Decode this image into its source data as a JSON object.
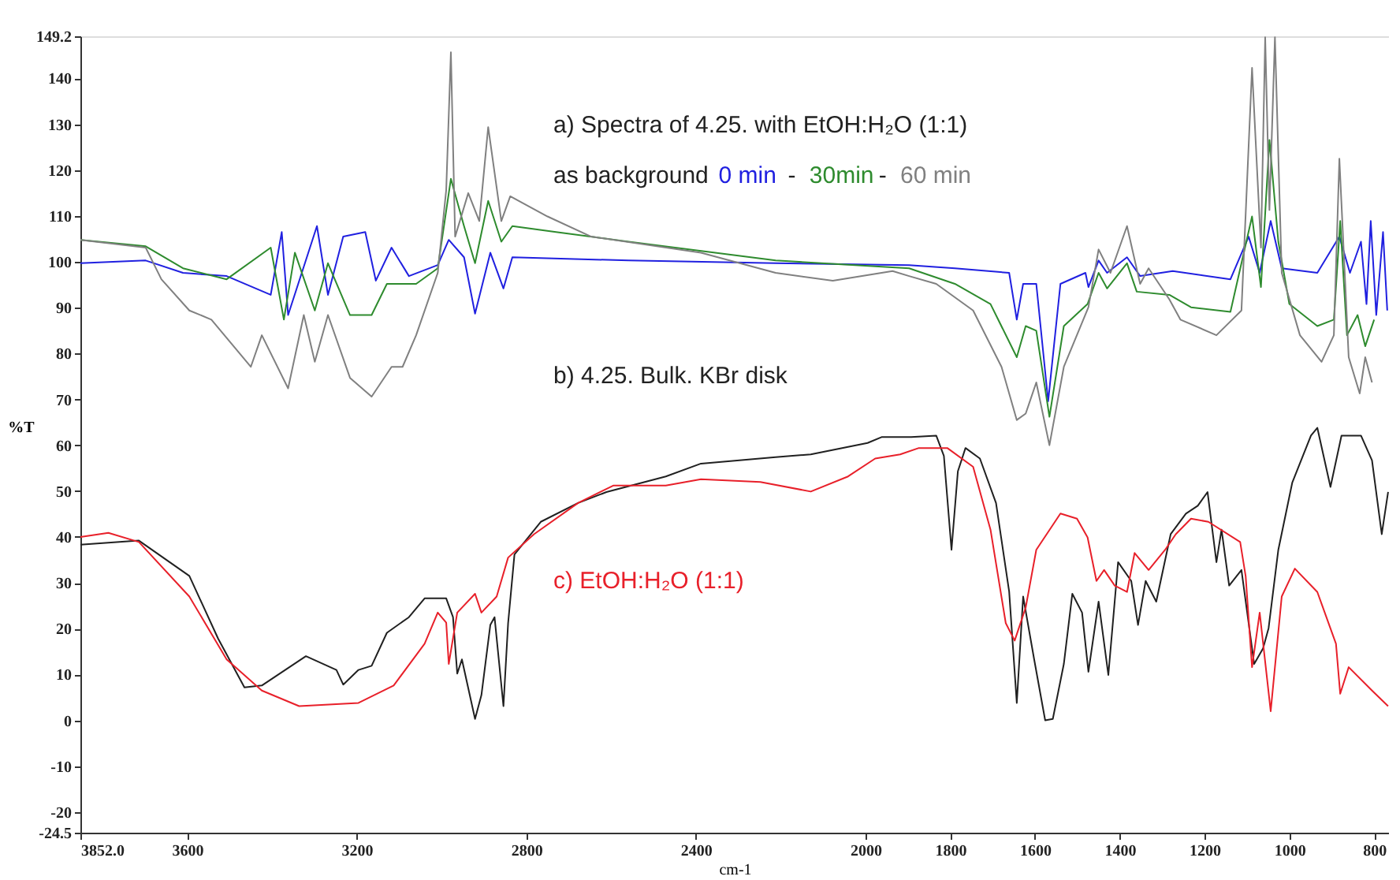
{
  "chart_data": {
    "type": "line",
    "xlabel": "cm-1",
    "ylabel": "%T",
    "annotations": [
      "a) Spectra of 4.25. with EtOH:H₂O (1:1)",
      "as background",
      "-",
      "-"
    ],
    "xlim": [
      3852,
      765
    ],
    "ylim": [
      -24.5,
      149.2
    ],
    "xticks": [
      {
        "value": 3852,
        "label": "3852.0"
      },
      3600,
      3200,
      2800,
      2400,
      2000,
      1800,
      1600,
      1400,
      1200,
      1000,
      800
    ],
    "yticks": [
      -24.5,
      -20,
      -10,
      0,
      10,
      20,
      30,
      40,
      50,
      60,
      70,
      80,
      90,
      100,
      110,
      120,
      130,
      140,
      149.2
    ],
    "grid": false,
    "legend": false,
    "marker": "none",
    "line_style": "solid",
    "series": [
      {
        "name": "0 min",
        "color": "#2020e0",
        "x": [
          3852,
          3698,
          3610,
          3507,
          3403,
          3377,
          3362,
          3294,
          3268,
          3232,
          3180,
          3155,
          3118,
          3077,
          3009,
          2983,
          2947,
          2921,
          2885,
          2854,
          2833,
          2559,
          2212,
          1897,
          1789,
          1661,
          1643,
          1628,
          1597,
          1569,
          1540,
          1481,
          1474,
          1450,
          1430,
          1383,
          1352,
          1275,
          1139,
          1096,
          1070,
          1044,
          1018,
          934,
          882,
          857,
          831,
          818,
          808,
          795,
          779,
          769
        ],
        "values": [
          99.7,
          100.3,
          97.6,
          96.9,
          92.8,
          106.5,
          88.4,
          107.8,
          92.8,
          105.5,
          106.5,
          95.9,
          103.1,
          96.9,
          99.3,
          104.8,
          101,
          88.7,
          102,
          94.2,
          101,
          100.3,
          99.7,
          99.3,
          98.6,
          97.6,
          87.4,
          95.2,
          95.2,
          69.6,
          95.2,
          97.6,
          94.5,
          100.3,
          97.6,
          101,
          96.9,
          98,
          96.2,
          105.5,
          97.6,
          108.9,
          98.6,
          97.6,
          105.5,
          97.6,
          104.4,
          90.8,
          108.9,
          88.4,
          106.5,
          89.4
        ]
      },
      {
        "name": "30min",
        "color": "#2e8b2e",
        "x": [
          3852,
          3698,
          3610,
          3507,
          3403,
          3372,
          3346,
          3299,
          3268,
          3216,
          3165,
          3129,
          3060,
          3009,
          2978,
          2947,
          2921,
          2890,
          2859,
          2833,
          2730,
          2559,
          2212,
          1897,
          1789,
          1705,
          1643,
          1622,
          1597,
          1566,
          1532,
          1476,
          1450,
          1430,
          1383,
          1360,
          1283,
          1232,
          1139,
          1088,
          1067,
          1047,
          1026,
          1000,
          934,
          895,
          880,
          864,
          839,
          821,
          800
        ],
        "values": [
          104.8,
          103.4,
          98.6,
          96.2,
          103.1,
          87.4,
          102,
          89.4,
          99.7,
          88.4,
          88.4,
          95.2,
          95.2,
          98.6,
          118.1,
          107.8,
          99.7,
          113.3,
          104.4,
          107.8,
          106.5,
          104.4,
          100.3,
          98.6,
          95.2,
          90.8,
          79.2,
          86,
          85,
          66.2,
          86,
          90.8,
          97.6,
          94.2,
          99.7,
          93.5,
          92.8,
          90.1,
          89.1,
          109.9,
          94.5,
          126.6,
          104.4,
          90.8,
          86,
          87.4,
          108.9,
          84,
          88.4,
          81.6,
          87.4
        ]
      },
      {
        "name": "60 min",
        "color": "#808080",
        "x": [
          3852,
          3698,
          3661,
          3595,
          3543,
          3450,
          3424,
          3362,
          3325,
          3299,
          3268,
          3216,
          3165,
          3118,
          3092,
          3060,
          3009,
          2989,
          2978,
          2968,
          2937,
          2911,
          2890,
          2859,
          2838,
          2750,
          2647,
          2388,
          2212,
          2077,
          1936,
          1897,
          1833,
          1746,
          1679,
          1643,
          1622,
          1597,
          1566,
          1532,
          1474,
          1450,
          1422,
          1383,
          1352,
          1332,
          1283,
          1257,
          1172,
          1113,
          1088,
          1067,
          1057,
          1047,
          1034,
          1018,
          975,
          924,
          895,
          882,
          860,
          834,
          821,
          805
        ],
        "values": [
          104.8,
          103.1,
          96.2,
          89.4,
          87.4,
          77.1,
          84,
          72.4,
          88.4,
          78.2,
          88.4,
          74.7,
          70.6,
          77.1,
          77.1,
          84,
          97.6,
          115.7,
          145.7,
          105.5,
          115,
          108.9,
          129.4,
          108.9,
          114.3,
          109.9,
          105.5,
          102,
          97.6,
          95.9,
          98,
          96.9,
          95.2,
          89.4,
          77.1,
          65.5,
          66.9,
          73.7,
          60,
          77.1,
          90.1,
          102.7,
          97.6,
          107.8,
          95.2,
          98.6,
          91.8,
          87.4,
          84,
          89.4,
          142.3,
          103.1,
          149,
          111.3,
          149,
          97.6,
          84,
          78.2,
          84,
          122.5,
          79.2,
          71.3,
          79.2,
          73.7
        ]
      },
      {
        "name": "b) 4.25. Bulk. KBr disk",
        "color": "#202020",
        "x": [
          3852,
          3714,
          3595,
          3527,
          3465,
          3424,
          3320,
          3248,
          3232,
          3196,
          3165,
          3129,
          3077,
          3040,
          2989,
          2973,
          2963,
          2952,
          2921,
          2906,
          2885,
          2875,
          2854,
          2843,
          2828,
          2766,
          2678,
          2611,
          2471,
          2388,
          2212,
          2129,
          1995,
          1961,
          1892,
          1833,
          1815,
          1797,
          1782,
          1764,
          1730,
          1692,
          1661,
          1643,
          1628,
          1602,
          1576,
          1558,
          1532,
          1512,
          1489,
          1474,
          1450,
          1427,
          1404,
          1373,
          1357,
          1339,
          1314,
          1280,
          1244,
          1216,
          1193,
          1172,
          1160,
          1142,
          1113,
          1083,
          1062,
          1049,
          1026,
          993,
          949,
          934,
          903,
          877,
          831,
          805,
          782,
          767
        ],
        "values": [
          38.3,
          39.2,
          31.5,
          17.8,
          7.2,
          7.6,
          14,
          11,
          7.8,
          11,
          11.9,
          19.1,
          22.5,
          26.6,
          26.6,
          22.5,
          10.2,
          13.3,
          0.3,
          5.5,
          20.8,
          22.5,
          3.1,
          21.2,
          36.2,
          43.3,
          47.4,
          49.8,
          53.2,
          56,
          57.4,
          58,
          60.5,
          61.8,
          61.8,
          62.1,
          57.7,
          37.2,
          54.3,
          59.4,
          57.1,
          47.4,
          28.1,
          3.8,
          27,
          13.3,
          0,
          0.3,
          12.3,
          27.6,
          23.5,
          10.6,
          25.9,
          9.9,
          34.5,
          30.4,
          20.8,
          30.4,
          25.9,
          40.6,
          45.1,
          46.8,
          49.8,
          34.5,
          41.6,
          29.4,
          32.8,
          12.3,
          15.7,
          20.1,
          37.2,
          51.9,
          62.1,
          63.8,
          50.9,
          62.1,
          62.1,
          56.7,
          40.6,
          49.8
        ]
      },
      {
        "name": "c) EtOH:H₂O (1:1)",
        "color": "#e8202a",
        "x": [
          3852,
          3786,
          3714,
          3595,
          3507,
          3424,
          3336,
          3196,
          3113,
          3040,
          3009,
          2989,
          2983,
          2963,
          2921,
          2906,
          2870,
          2843,
          2782,
          2678,
          2595,
          2471,
          2388,
          2248,
          2129,
          2041,
          1977,
          1918,
          1874,
          1807,
          1746,
          1705,
          1669,
          1648,
          1622,
          1597,
          1540,
          1501,
          1476,
          1455,
          1437,
          1412,
          1383,
          1365,
          1332,
          1293,
          1268,
          1232,
          1191,
          1116,
          1103,
          1088,
          1070,
          1044,
          1018,
          987,
          934,
          890,
          880,
          860,
          805,
          767
        ],
        "values": [
          40,
          40.9,
          38.9,
          27,
          13.3,
          6.5,
          3.1,
          3.8,
          7.6,
          16.7,
          23.5,
          21.3,
          12.3,
          23.5,
          27.6,
          23.5,
          27,
          35.5,
          40.6,
          47.4,
          51.2,
          51.2,
          52.6,
          52,
          49.9,
          53.2,
          57.1,
          58,
          59.4,
          59.4,
          55.3,
          41.6,
          21.2,
          17.4,
          24.6,
          37.2,
          45.1,
          44,
          39.9,
          30.4,
          32.8,
          29.4,
          28,
          36.5,
          32.8,
          37.2,
          40.6,
          44,
          43.3,
          38.9,
          31.4,
          11.6,
          23.5,
          2,
          27,
          33.1,
          28,
          16.7,
          5.8,
          11.6,
          6.5,
          3.1
        ]
      }
    ]
  }
}
